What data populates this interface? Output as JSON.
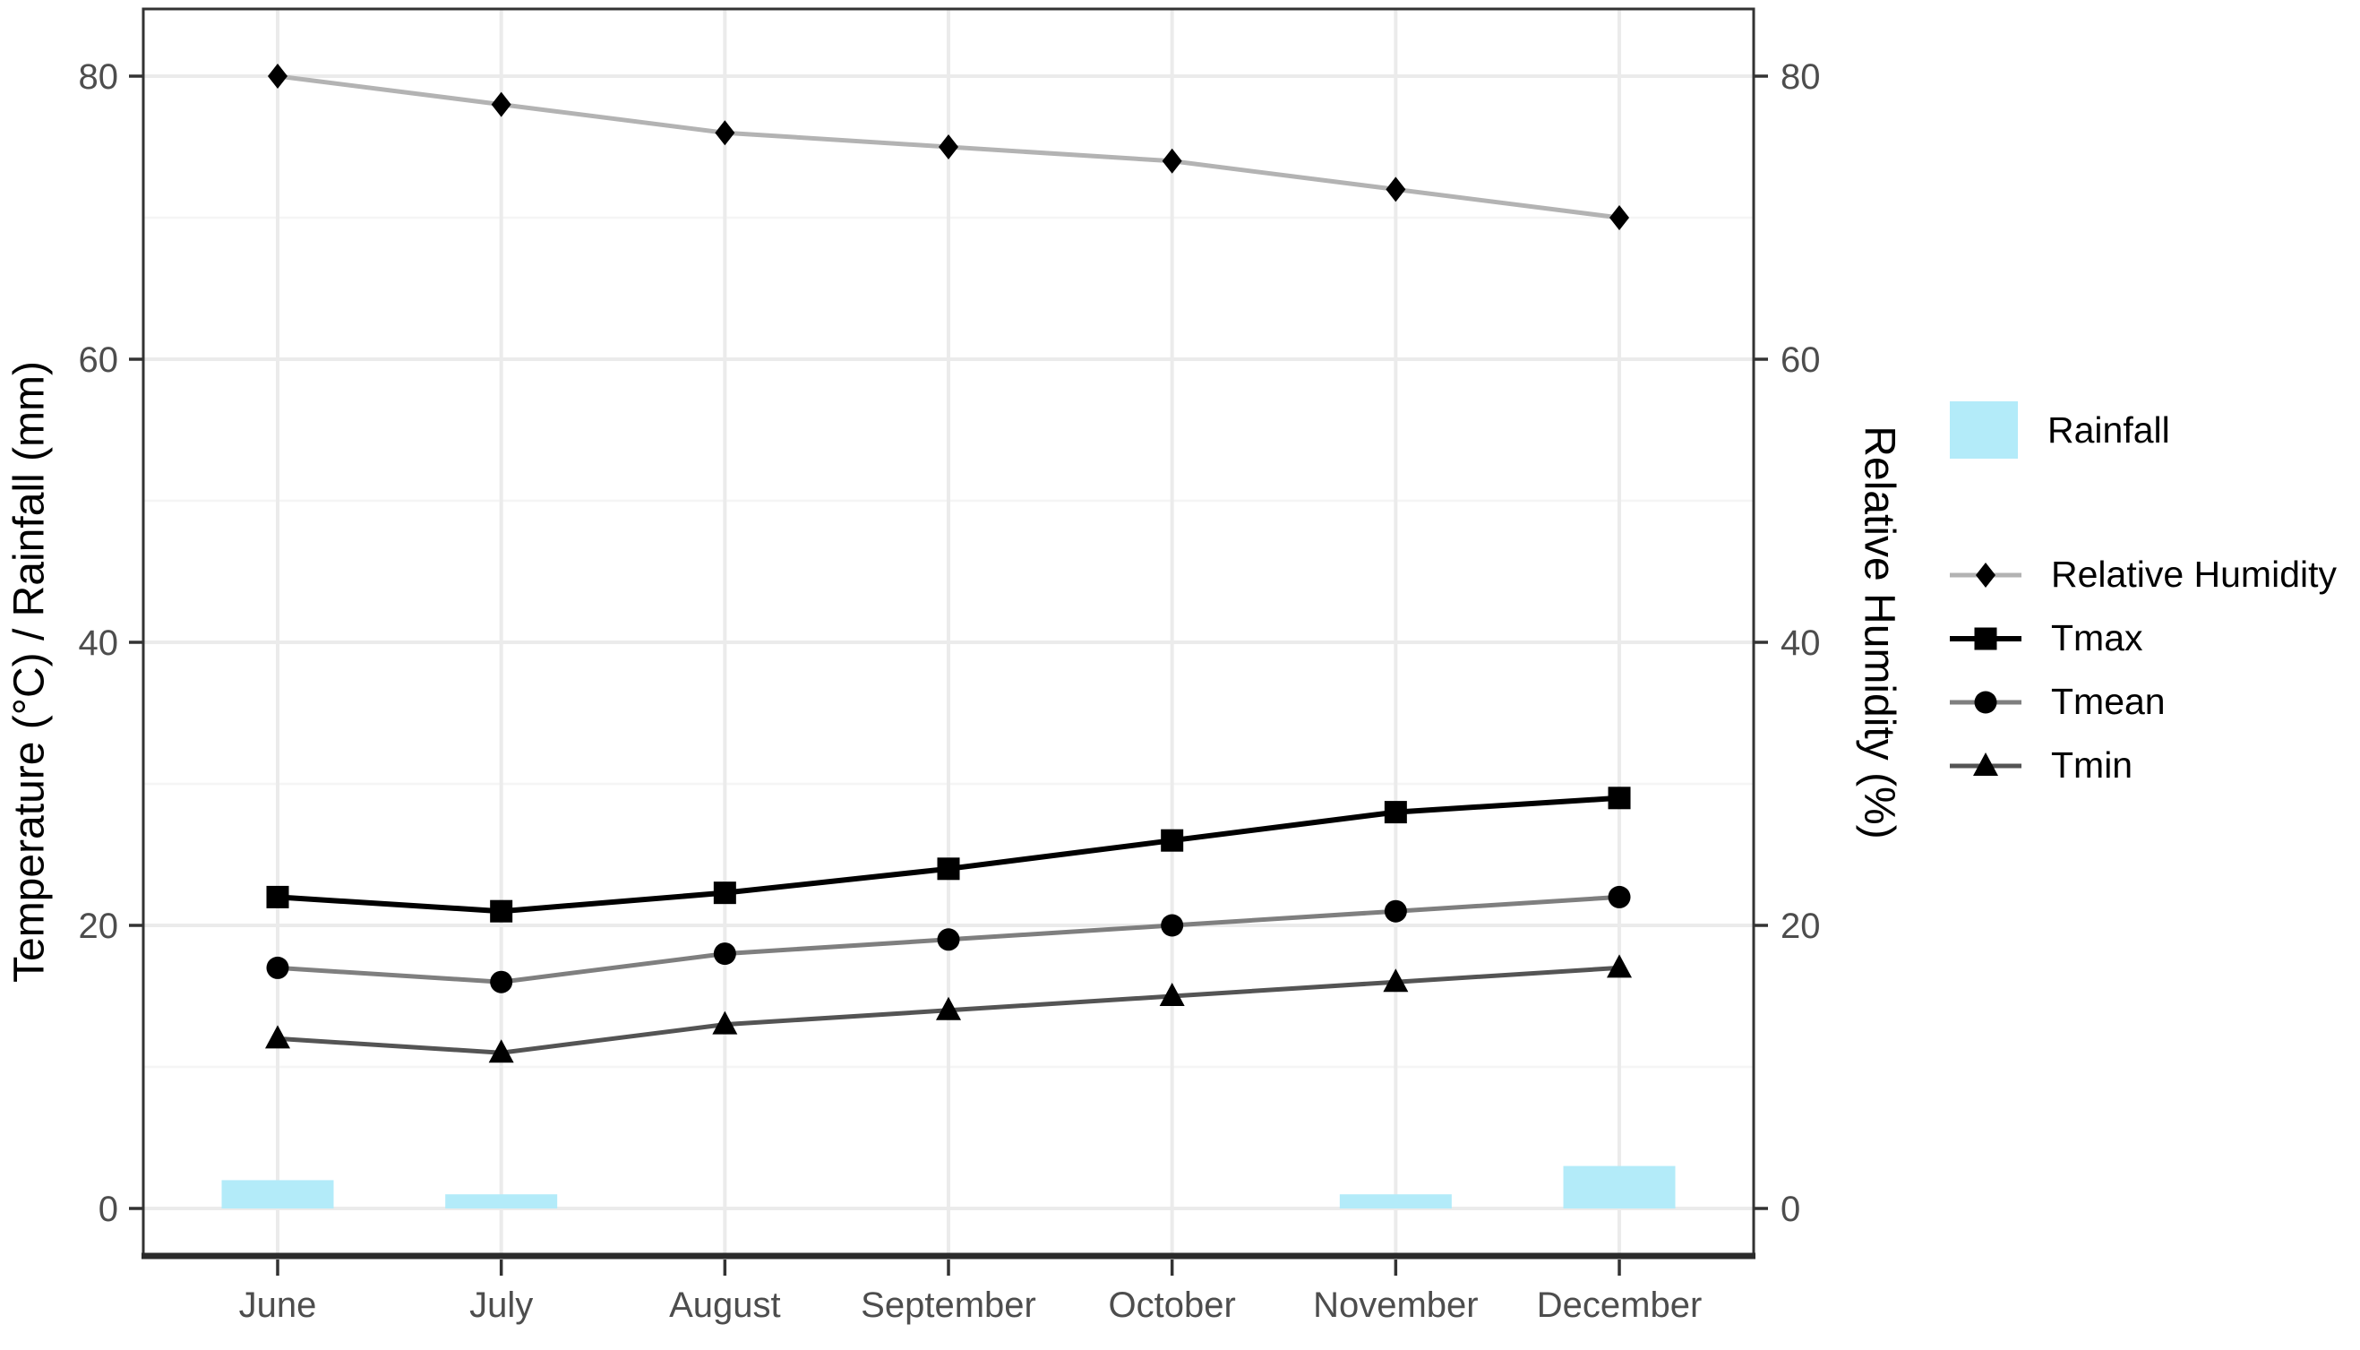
{
  "page": {
    "background": "#FFFFFF"
  },
  "chart_data": {
    "type": "combo-bar-line",
    "title": "",
    "categories": [
      "June",
      "July",
      "August",
      "September",
      "October",
      "November",
      "December"
    ],
    "series": [
      {
        "name": "Rainfall",
        "type": "bar",
        "axis": "left",
        "values": [
          2,
          1,
          0,
          0,
          0,
          1,
          3
        ],
        "color": "#B3EBF9"
      },
      {
        "name": "Relative Humidity",
        "type": "line",
        "marker": "diamond",
        "axis": "right",
        "values": [
          80,
          78,
          76,
          75,
          74,
          72,
          70
        ],
        "line_color": "#B3B3B3",
        "marker_color": "#000000",
        "line_width": 5
      },
      {
        "name": "Tmax",
        "type": "line",
        "marker": "square",
        "axis": "left",
        "values": [
          22,
          21,
          22.3,
          24,
          26,
          28,
          29
        ],
        "line_color": "#000000",
        "marker_color": "#000000",
        "line_width": 6
      },
      {
        "name": "Tmean",
        "type": "line",
        "marker": "circle",
        "axis": "left",
        "values": [
          17,
          16,
          18,
          19,
          20,
          21,
          22
        ],
        "line_color": "#7F7F7F",
        "marker_color": "#000000",
        "line_width": 5
      },
      {
        "name": "Tmin",
        "type": "line",
        "marker": "triangle",
        "axis": "left",
        "values": [
          12,
          11,
          13,
          14,
          15,
          16,
          17
        ],
        "line_color": "#545454",
        "marker_color": "#000000",
        "line_width": 5
      }
    ],
    "left_axis": {
      "title": "Temperature (°C) / Rainfall (mm)",
      "ticks": [
        0,
        20,
        40,
        60,
        80
      ],
      "minor_gridlines": [
        10,
        30,
        50,
        70
      ]
    },
    "right_axis": {
      "title": "Relative Humidity (%)",
      "ticks": [
        0,
        20,
        40,
        60,
        80
      ]
    },
    "x_axis": {
      "labels": [
        "June",
        "July",
        "August",
        "September",
        "October",
        "November",
        "December"
      ]
    },
    "legend": {
      "position": "right",
      "entries": [
        {
          "label": "Rainfall",
          "key": "box",
          "color": "#B3EBF9"
        },
        {
          "label": "Relative Humidity",
          "key": "line-diamond",
          "line_color": "#B3B3B3",
          "marker_color": "#000000",
          "line_width": 5
        },
        {
          "label": "Tmax",
          "key": "line-square",
          "line_color": "#000000",
          "marker_color": "#000000",
          "line_width": 6
        },
        {
          "label": "Tmean",
          "key": "line-circle",
          "line_color": "#7F7F7F",
          "marker_color": "#000000",
          "line_width": 5
        },
        {
          "label": "Tmin",
          "key": "line-triangle",
          "line_color": "#545454",
          "marker_color": "#000000",
          "line_width": 5
        }
      ]
    },
    "colors": {
      "grid_major": "#EBEBEB",
      "grid_minor": "#F5F5F5",
      "panel_border": "#333333",
      "axis_line": "#2B2B2B",
      "tick_mark": "#333333",
      "tick_label": "#4D4D4D",
      "axis_title": "#000000"
    }
  }
}
